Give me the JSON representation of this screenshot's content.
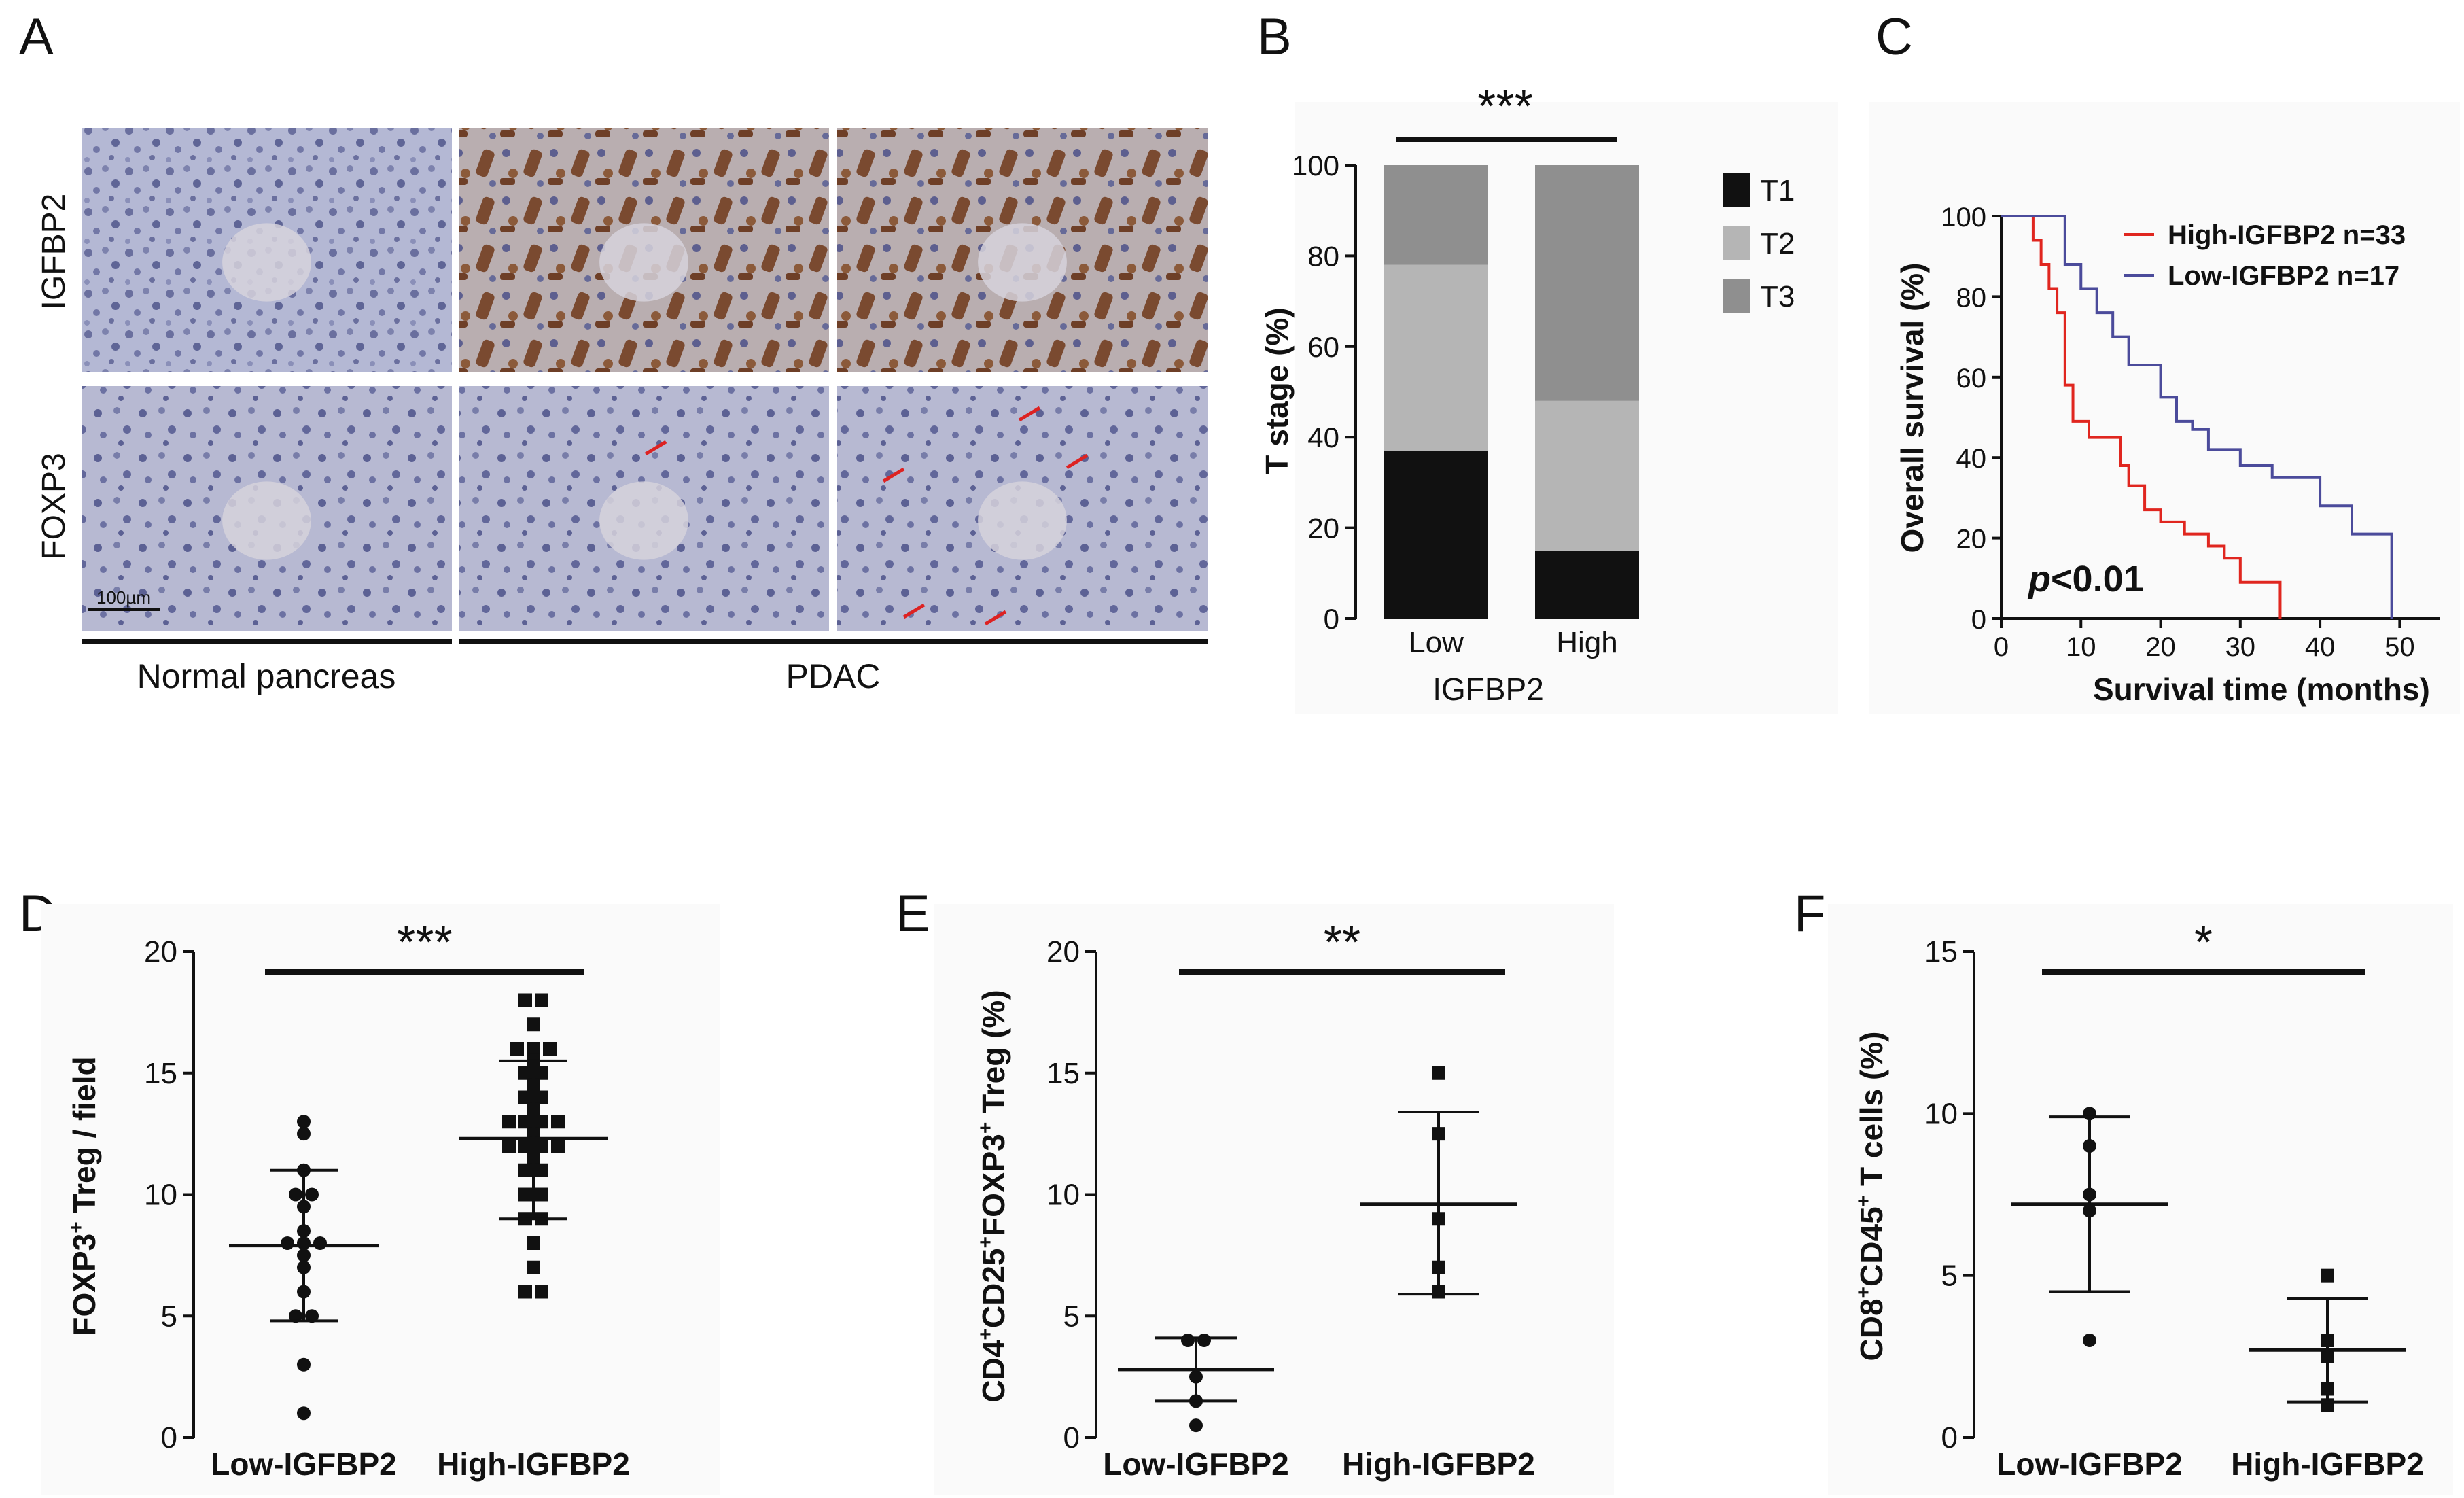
{
  "panel_letters": [
    "A",
    "B",
    "C",
    "D",
    "E",
    "F"
  ],
  "panel_a": {
    "row_labels": [
      "IGFBP2",
      "FOXP3"
    ],
    "group_labels": [
      "Normal pancreas",
      "PDAC"
    ],
    "scale_bar": "100µm"
  },
  "chart_data": [
    {
      "panel": "B",
      "type": "bar",
      "stacked": true,
      "categories": [
        "Low",
        "High"
      ],
      "series": [
        {
          "name": "T1",
          "values": [
            37,
            15
          ],
          "color": "#111111"
        },
        {
          "name": "T2",
          "values": [
            41,
            33
          ],
          "color": "#b5b5b5"
        },
        {
          "name": "T3",
          "values": [
            22,
            52
          ],
          "color": "#8f8f8f"
        }
      ],
      "xlabel": "IGFBP2",
      "ylabel": "T stage (%)",
      "ylim": [
        0,
        100
      ],
      "yticks": [
        "0",
        "20",
        "40",
        "60",
        "80",
        "100"
      ],
      "significance": "***",
      "legend": "right"
    },
    {
      "panel": "C",
      "type": "line",
      "subtype": "kaplan-meier",
      "xlabel": "Survival time (months)",
      "ylabel": "Overall survival (%)",
      "xlim": [
        0,
        55
      ],
      "ylim": [
        0,
        100
      ],
      "xticks": [
        "0",
        "10",
        "20",
        "30",
        "40",
        "50"
      ],
      "yticks": [
        "0",
        "20",
        "40",
        "60",
        "80",
        "100"
      ],
      "annotation_italic": "p",
      "annotation_rest": "<0.01",
      "legend": "top-right",
      "series": [
        {
          "name": "High-IGFBP2 n=33",
          "color": "#e0261f",
          "x": [
            0,
            4,
            5,
            6,
            7,
            8,
            9,
            11,
            15,
            16,
            18,
            20,
            23,
            26,
            28,
            30,
            35
          ],
          "y": [
            100,
            94,
            88,
            82,
            76,
            58,
            49,
            45,
            38,
            33,
            27,
            24,
            21,
            18,
            15,
            9,
            0
          ]
        },
        {
          "name": "Low-IGFBP2 n=17",
          "color": "#4b4b9b",
          "x": [
            0,
            8,
            10,
            12,
            14,
            16,
            20,
            22,
            24,
            26,
            30,
            34,
            40,
            44,
            49
          ],
          "y": [
            100,
            88,
            82,
            76,
            70,
            63,
            55,
            49,
            47,
            42,
            38,
            35,
            28,
            21,
            0
          ]
        }
      ]
    },
    {
      "panel": "D",
      "type": "scatter",
      "categories": [
        "Low-IGFBP2",
        "High-IGFBP2"
      ],
      "ylabel_parts": [
        "FOXP3",
        "+",
        " Treg / field"
      ],
      "ylim": [
        0,
        20
      ],
      "yticks": [
        "0",
        "5",
        "10",
        "15",
        "20"
      ],
      "significance": "***",
      "series": [
        {
          "name": "Low-IGFBP2",
          "marker": "circle",
          "mean": 7.9,
          "sd_low": 4.8,
          "sd_high": 11.0,
          "values": [
            13,
            12.5,
            11,
            10,
            10,
            9.5,
            8.5,
            8,
            8,
            8,
            7.5,
            7,
            6,
            5,
            5,
            3,
            1
          ]
        },
        {
          "name": "High-IGFBP2",
          "marker": "square",
          "mean": 12.3,
          "sd_low": 9.0,
          "sd_high": 15.5,
          "values": [
            18,
            18,
            17,
            16,
            16,
            16,
            15.5,
            15,
            15,
            14.5,
            14,
            14,
            13.5,
            13,
            13,
            13,
            13,
            12.5,
            12,
            12,
            12,
            12,
            11.5,
            11,
            11,
            10,
            10,
            9,
            9,
            8,
            7,
            6,
            6
          ]
        }
      ]
    },
    {
      "panel": "E",
      "type": "scatter",
      "categories": [
        "Low-IGFBP2",
        "High-IGFBP2"
      ],
      "ylabel_parts": [
        "CD4",
        "+",
        "CD25",
        "+",
        "FOXP3",
        "+",
        " Treg (%)"
      ],
      "ylim": [
        0,
        20
      ],
      "yticks": [
        "0",
        "5",
        "10",
        "15",
        "20"
      ],
      "significance": "**",
      "series": [
        {
          "name": "Low-IGFBP2",
          "marker": "circle",
          "mean": 2.8,
          "sd_low": 1.5,
          "sd_high": 4.1,
          "values": [
            4,
            4,
            2.5,
            1.5,
            0.5
          ]
        },
        {
          "name": "High-IGFBP2",
          "marker": "square",
          "mean": 9.6,
          "sd_low": 5.9,
          "sd_high": 13.4,
          "values": [
            15,
            12.5,
            9,
            7,
            6
          ]
        }
      ]
    },
    {
      "panel": "F",
      "type": "scatter",
      "categories": [
        "Low-IGFBP2",
        "High-IGFBP2"
      ],
      "ylabel_parts": [
        "CD8",
        "+",
        "CD45",
        "+",
        " T cells (%)"
      ],
      "ylim": [
        0,
        15
      ],
      "yticks": [
        "0",
        "5",
        "10",
        "15"
      ],
      "significance": "*",
      "series": [
        {
          "name": "Low-IGFBP2",
          "marker": "circle",
          "mean": 7.2,
          "sd_low": 4.5,
          "sd_high": 9.9,
          "values": [
            10,
            9,
            7.5,
            7,
            3
          ]
        },
        {
          "name": "High-IGFBP2",
          "marker": "square",
          "mean": 2.7,
          "sd_low": 1.1,
          "sd_high": 4.3,
          "values": [
            5,
            3,
            2.5,
            1.5,
            1
          ]
        }
      ]
    }
  ]
}
